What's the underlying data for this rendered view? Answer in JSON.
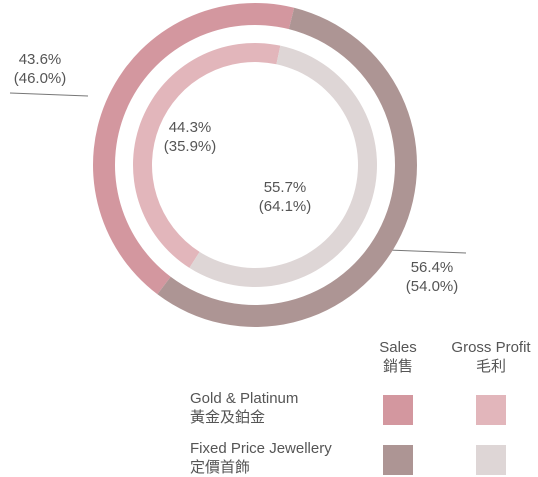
{
  "chart_data": {
    "type": "donut",
    "categories": [
      "Gold & Platinum",
      "Fixed Price Jewellery"
    ],
    "categories_zh": [
      "黃金及鉑金",
      "定價首飾"
    ],
    "series": [
      {
        "name": "Sales",
        "name_zh": "銷售",
        "colors": [
          "#d3979f",
          "#ad9594"
        ],
        "values": [
          43.6,
          56.4
        ],
        "value_labels": [
          "43.6%",
          "56.4%"
        ],
        "prior_values": [
          46.0,
          54.0
        ],
        "prior_value_labels": [
          "(46.0%)",
          "(54.0%)"
        ]
      },
      {
        "name": "Gross Profit",
        "name_zh": "毛利",
        "colors": [
          "#e2b6bb",
          "#ded6d6"
        ],
        "values": [
          44.3,
          55.7
        ],
        "value_labels": [
          "44.3%",
          "55.7%"
        ],
        "prior_values": [
          35.9,
          64.1
        ],
        "prior_value_labels": [
          "(35.9%)",
          "(64.1%)"
        ]
      }
    ]
  }
}
